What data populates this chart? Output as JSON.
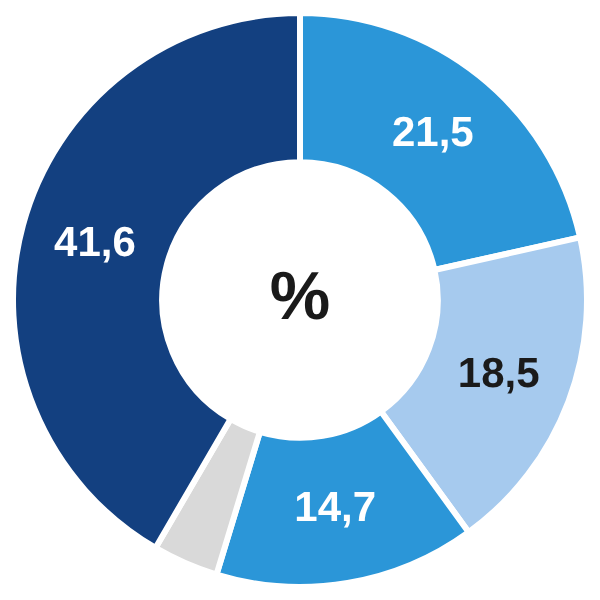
{
  "chart_data": {
    "type": "donut",
    "categories": [
      null,
      null,
      null,
      null,
      null
    ],
    "values": [
      21.5,
      18.5,
      14.7,
      3.7,
      41.6
    ],
    "colors": [
      "#2b96d8",
      "#a6caee",
      "#2b96d8",
      "#d9d9d9",
      "#134080"
    ],
    "value_labels": [
      "21,5",
      "18,5",
      "14,7",
      null,
      "41,6"
    ],
    "annotations": [
      "%"
    ],
    "legend": false
  }
}
